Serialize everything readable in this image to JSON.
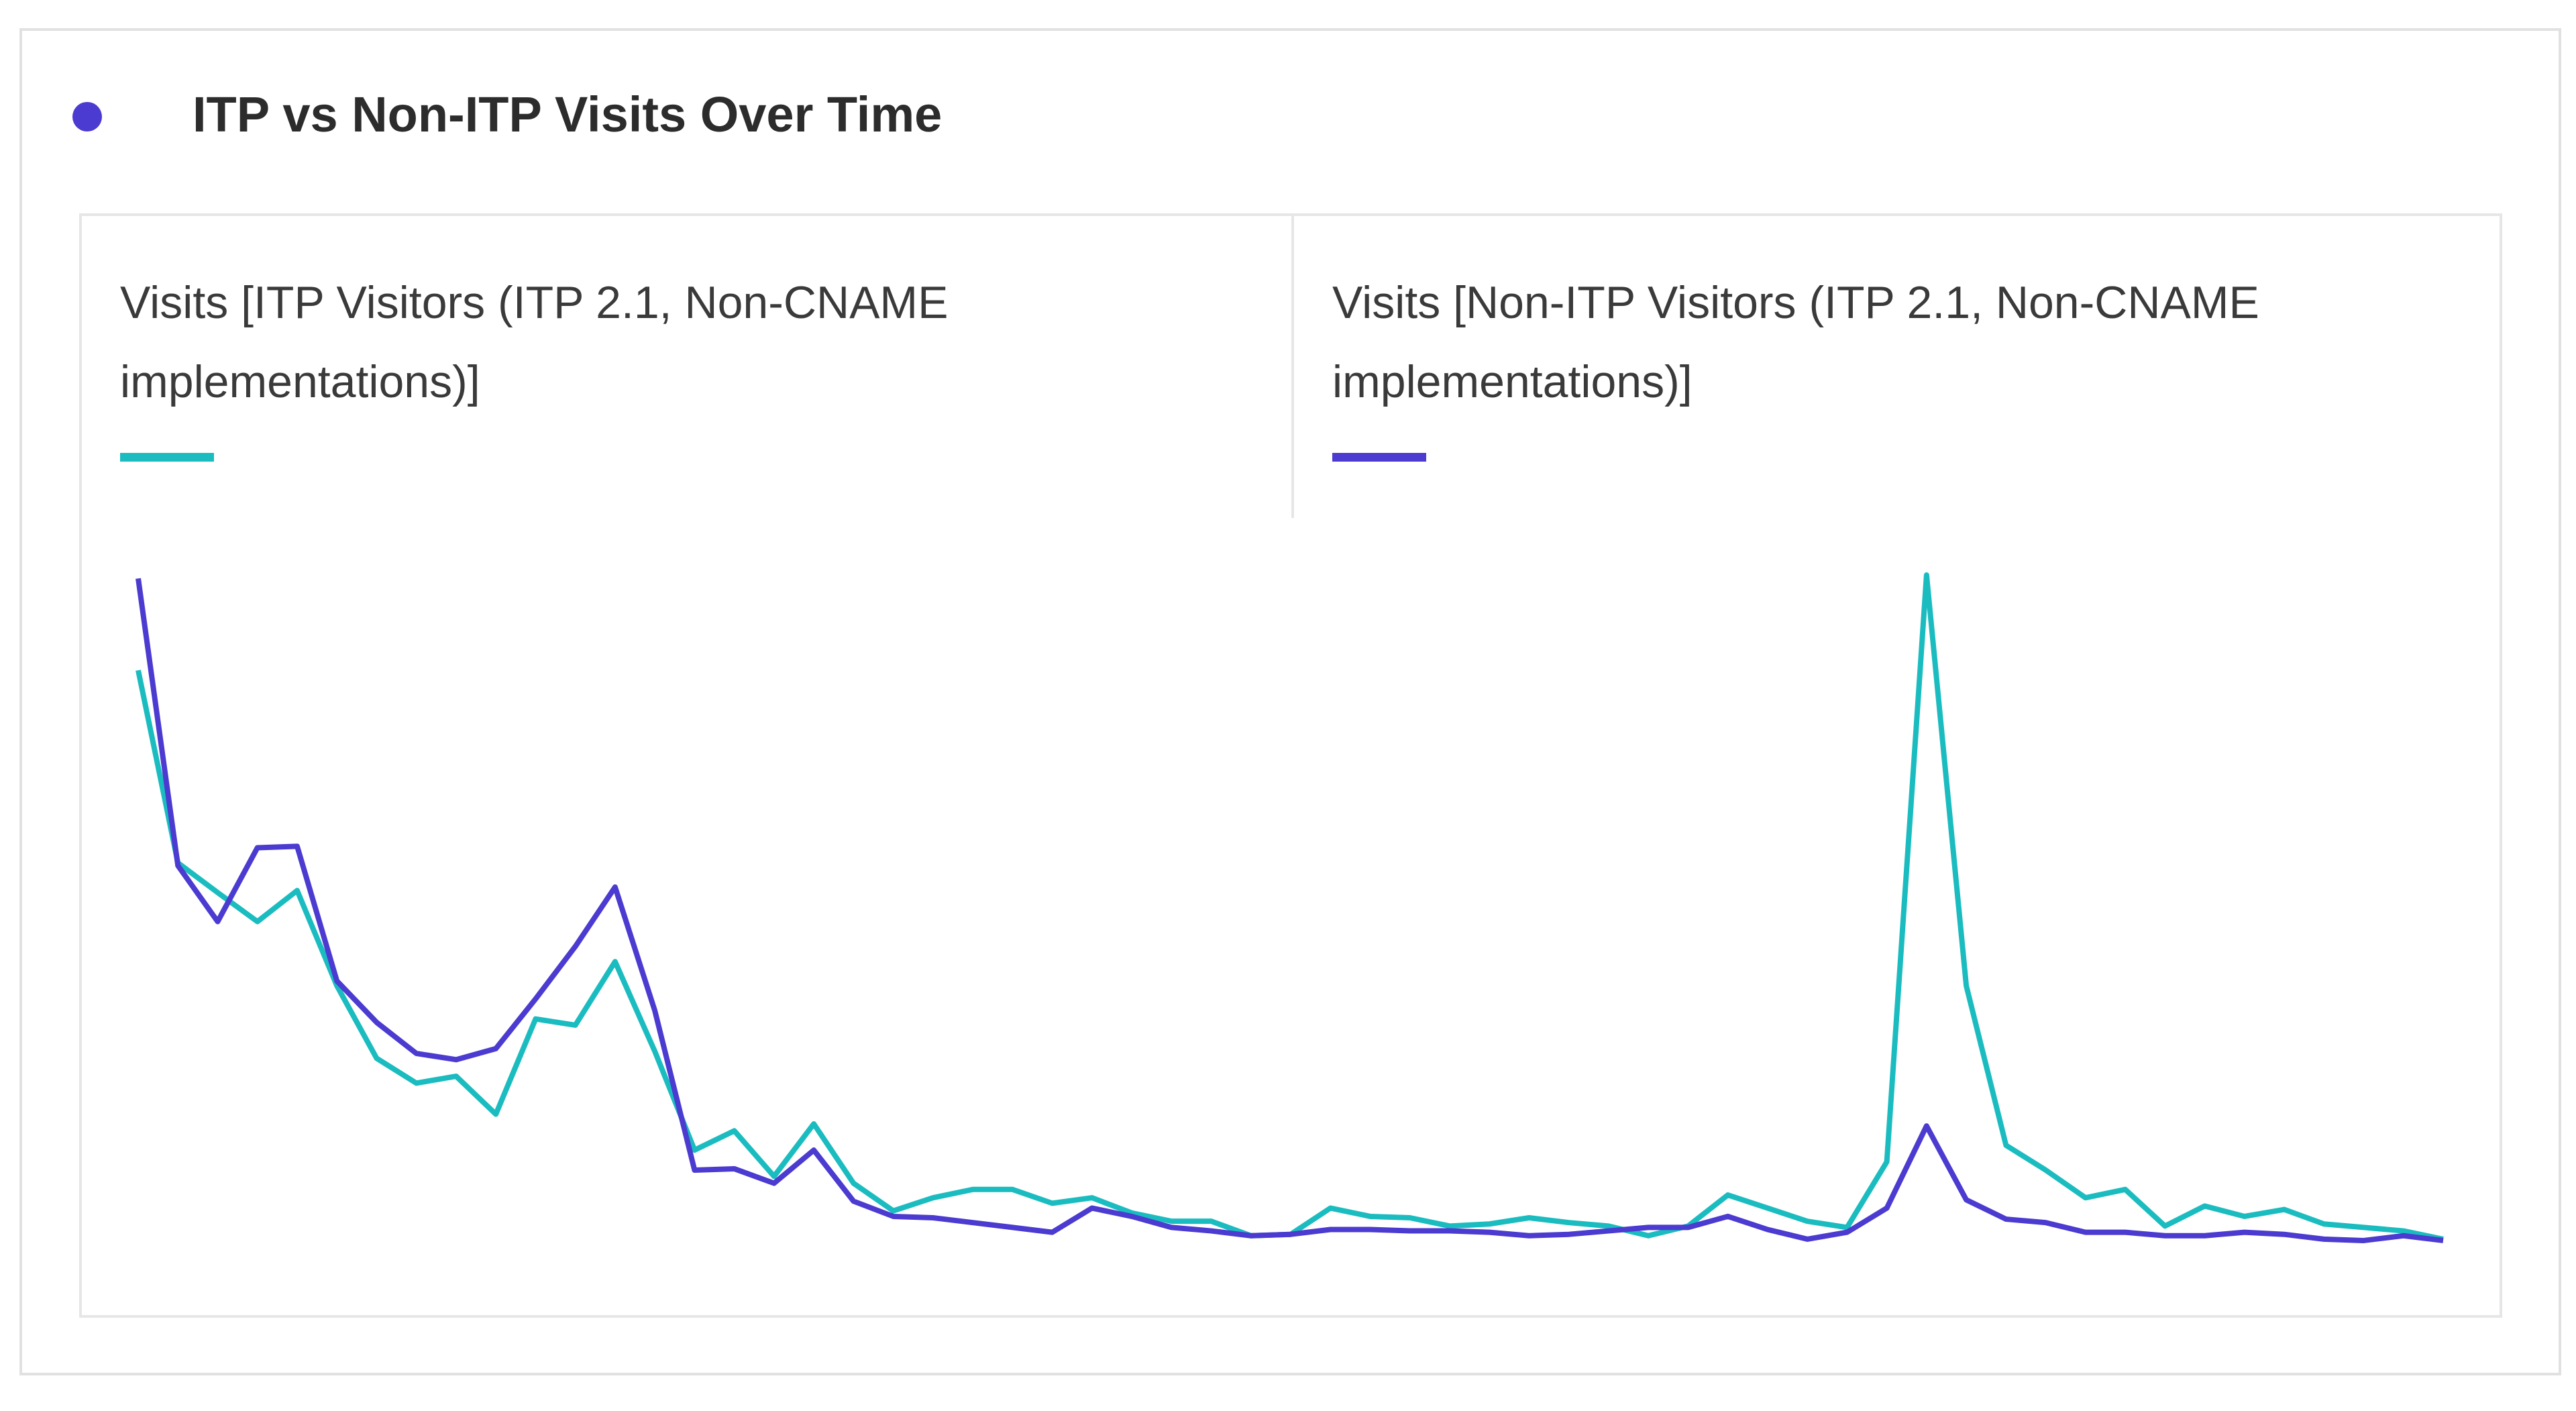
{
  "chart_data": {
    "type": "line",
    "title": "ITP vs Non-ITP Visits Over Time",
    "ylim": [
      0,
      100
    ],
    "series": [
      {
        "name": "Visits [ITP Visitors (ITP 2.1, Non-CNAME implementations)]",
        "color": "#1bbcc0",
        "values": [
          86.2,
          58.3,
          54.0,
          49.8,
          54.3,
          40.5,
          30.0,
          26.4,
          27.4,
          21.9,
          35.7,
          34.8,
          44.0,
          31.0,
          16.7,
          19.5,
          12.9,
          20.5,
          11.9,
          7.9,
          9.8,
          11.0,
          11.0,
          9.0,
          9.8,
          7.6,
          6.4,
          6.4,
          4.3,
          4.5,
          8.3,
          7.1,
          6.9,
          5.7,
          6.0,
          6.9,
          6.2,
          5.7,
          4.3,
          5.7,
          10.2,
          8.3,
          6.4,
          5.5,
          15.0,
          100,
          40.5,
          17.4,
          13.8,
          9.8,
          11.0,
          5.7,
          8.6,
          7.1,
          8.1,
          6.0,
          5.5,
          5.0,
          3.8
        ]
      },
      {
        "name": "Visits [Non-ITP Visitors (ITP 2.1, Non-CNAME implementations)]",
        "color": "#4b3bd0",
        "values": [
          99.5,
          57.9,
          49.8,
          60.5,
          60.7,
          41.2,
          35.2,
          30.7,
          29.8,
          31.4,
          38.6,
          46.2,
          54.8,
          36.9,
          13.8,
          14.0,
          11.9,
          16.7,
          9.3,
          7.1,
          6.9,
          6.2,
          5.5,
          4.8,
          8.3,
          7.1,
          5.5,
          5.0,
          4.3,
          4.5,
          5.2,
          5.2,
          5.0,
          5.0,
          4.8,
          4.3,
          4.5,
          5.0,
          5.5,
          5.5,
          7.1,
          5.2,
          3.8,
          4.8,
          8.3,
          20.2,
          9.5,
          6.7,
          6.2,
          4.8,
          4.8,
          4.3,
          4.3,
          4.8,
          4.5,
          3.8,
          3.6,
          4.3,
          3.6
        ]
      }
    ]
  }
}
